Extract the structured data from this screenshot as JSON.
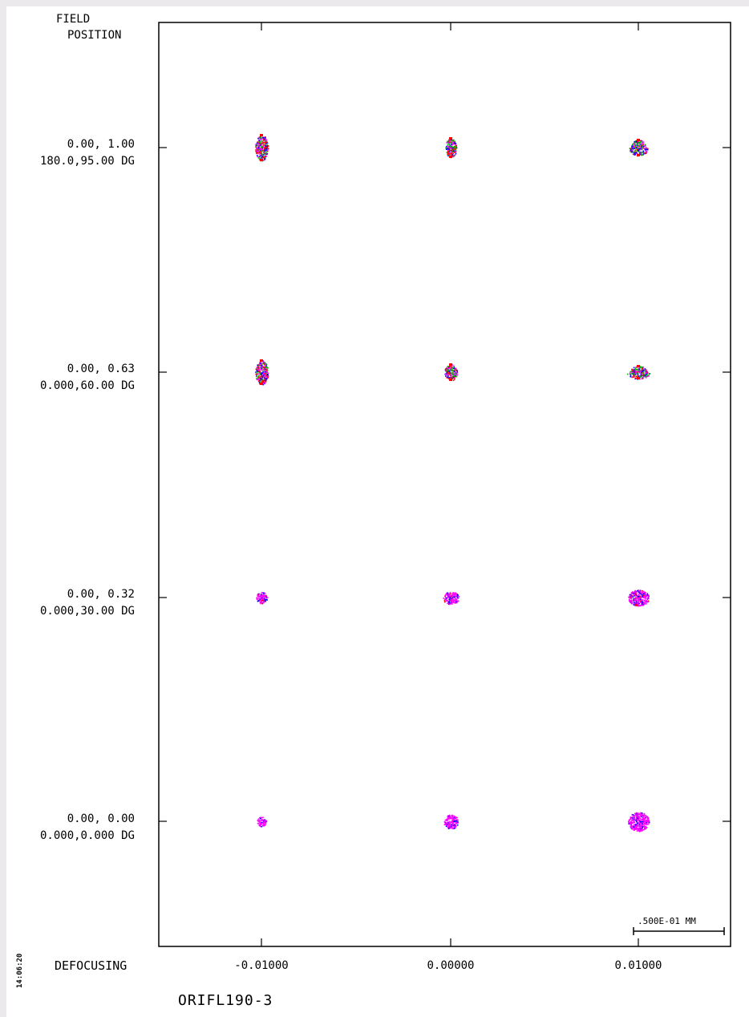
{
  "header": {
    "field_line1": "FIELD",
    "field_line2": "POSITION"
  },
  "rows": [
    {
      "rel": "0.00, 1.00",
      "ang": "180.0,95.00 DG"
    },
    {
      "rel": "0.00, 0.63",
      "ang": "0.000,60.00 DG"
    },
    {
      "rel": "0.00, 0.32",
      "ang": "0.000,30.00 DG"
    },
    {
      "rel": "0.00, 0.00",
      "ang": "0.000,0.000 DG"
    }
  ],
  "footer": {
    "defocus_label": "DEFOCUSING",
    "time": "14:06:20",
    "system_name": "ORIFL190-3",
    "scale_label": ".500E-01 MM"
  },
  "chart_data": {
    "type": "scatter",
    "title": "",
    "xlabel": "DEFOCUSING",
    "ylabel": "FIELD POSITION",
    "x": [
      -0.01,
      0.0,
      0.01
    ],
    "x_labels": [
      "-0.01000",
      "0.00000",
      "0.01000"
    ],
    "y_labels": [
      "0.00, 1.00",
      "0.00, 0.63",
      "0.00, 0.32",
      "0.00, 0.00"
    ],
    "scale_bar_mm": 0.05,
    "grid": false,
    "colors": {
      "c1": "#ff0000",
      "c2": "#00c000",
      "c3": "#0000ff",
      "c4": "#ff00ff"
    },
    "spots": [
      {
        "field": 0,
        "defocus": 0,
        "size": [
          8,
          16
        ],
        "shape": "tall"
      },
      {
        "field": 0,
        "defocus": 1,
        "size": [
          7,
          12
        ],
        "shape": "tall"
      },
      {
        "field": 0,
        "defocus": 2,
        "size": [
          9,
          10
        ],
        "shape": "comet"
      },
      {
        "field": 1,
        "defocus": 0,
        "size": [
          8,
          15
        ],
        "shape": "tall"
      },
      {
        "field": 1,
        "defocus": 1,
        "size": [
          8,
          10
        ],
        "shape": "tall"
      },
      {
        "field": 1,
        "defocus": 2,
        "size": [
          11,
          8
        ],
        "shape": "comet"
      },
      {
        "field": 2,
        "defocus": 0,
        "size": [
          7,
          7
        ],
        "shape": "round"
      },
      {
        "field": 2,
        "defocus": 1,
        "size": [
          10,
          8
        ],
        "shape": "round"
      },
      {
        "field": 2,
        "defocus": 2,
        "size": [
          13,
          10
        ],
        "shape": "round"
      },
      {
        "field": 3,
        "defocus": 0,
        "size": [
          6,
          6
        ],
        "shape": "round"
      },
      {
        "field": 3,
        "defocus": 1,
        "size": [
          9,
          9
        ],
        "shape": "round"
      },
      {
        "field": 3,
        "defocus": 2,
        "size": [
          13,
          12
        ],
        "shape": "round"
      }
    ]
  }
}
